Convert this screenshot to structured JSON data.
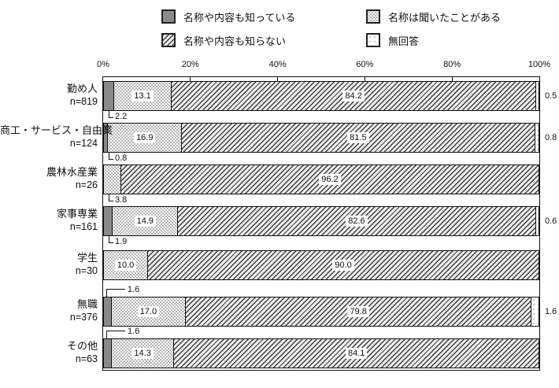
{
  "chart_data": {
    "type": "bar",
    "orientation": "horizontal",
    "stacked": true,
    "xlim": [
      0,
      100
    ],
    "x_ticks": [
      "0%",
      "20%",
      "40%",
      "60%",
      "80%",
      "100%"
    ],
    "legend": [
      {
        "label": "名称や内容も知っている",
        "pattern": "solid-gray"
      },
      {
        "label": "名称は聞いたことがある",
        "pattern": "dense-dots"
      },
      {
        "label": "名称や内容も知らない",
        "pattern": "diagonal-hatch"
      },
      {
        "label": "無回答",
        "pattern": "sparse-dots"
      }
    ],
    "rows": [
      {
        "category": "勤め人",
        "n": "n=819",
        "know": 2.2,
        "heard": 13.1,
        "dont_know": 84.2,
        "no_answer": 0.5,
        "callout_pos": "below",
        "callout_target": "know",
        "heard_label_inside": true,
        "right_label": true
      },
      {
        "category": "商工・サービス・自由業",
        "n": "n=124",
        "know": 0.8,
        "heard": 16.9,
        "dont_know": 81.5,
        "no_answer": 0.8,
        "callout_pos": "below",
        "callout_target": "know",
        "heard_label_inside": true,
        "right_label": true
      },
      {
        "category": "農林水産業",
        "n": "n=26",
        "know": 0,
        "heard": 3.8,
        "dont_know": 96.2,
        "no_answer": 0,
        "callout_pos": "below",
        "callout_target": "heard",
        "heard_label_inside": false,
        "right_label": false
      },
      {
        "category": "家事専業",
        "n": "n=161",
        "know": 1.9,
        "heard": 14.9,
        "dont_know": 82.6,
        "no_answer": 0.6,
        "callout_pos": "below",
        "callout_target": "know",
        "heard_label_inside": true,
        "right_label": true
      },
      {
        "category": "学生",
        "n": "n=30",
        "know": 0,
        "heard": 10.0,
        "dont_know": 90.0,
        "no_answer": 0,
        "callout_pos": null,
        "callout_target": null,
        "heard_label_inside": true,
        "right_label": false
      },
      {
        "category": "無職",
        "n": "n=376",
        "know": 1.6,
        "heard": 17.0,
        "dont_know": 79.8,
        "no_answer": 1.6,
        "callout_pos": "above",
        "callout_target": "know",
        "heard_label_inside": true,
        "right_label": true
      },
      {
        "category": "その他",
        "n": "n=63",
        "know": 1.6,
        "heard": 14.3,
        "dont_know": 84.1,
        "no_answer": 0,
        "callout_pos": "above",
        "callout_target": "know",
        "heard_label_inside": true,
        "right_label": false
      }
    ]
  },
  "colors": {
    "know_fill": "#8a8a8a",
    "line": "#111111",
    "label_box_bg": "#ffffff"
  }
}
